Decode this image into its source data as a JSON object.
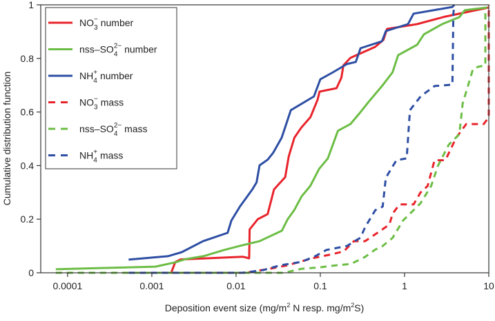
{
  "chart_data": {
    "type": "line",
    "xscale": "log",
    "xlim": [
      4.8e-05,
      10
    ],
    "ylim": [
      0,
      1
    ],
    "xlabel": {
      "pre": "Deposition event size (mg/m",
      "sup1": "2",
      "mid": " N resp. mg/m",
      "sup2": "2",
      "post": "S)"
    },
    "ylabel": "Cumulative distribution function",
    "x_ticks": [
      0.0001,
      0.001,
      0.01,
      0.1,
      1,
      10
    ],
    "x_tick_labels": [
      "0.0001",
      "0.001",
      "0.01",
      "0.1",
      "1",
      "10"
    ],
    "y_ticks": [
      0,
      0.2,
      0.4,
      0.6,
      0.8,
      1
    ],
    "y_tick_labels": [
      "0",
      "0.2",
      "0.4",
      "0.6",
      "0.8",
      "1"
    ],
    "grid": false,
    "legend_position": "top-left",
    "colors": {
      "red": "#e8232b",
      "green": "#6cbd45",
      "blue": "#2d4ea3"
    },
    "series": [
      {
        "name": "NO3- number",
        "label": {
          "pre": "NO",
          "sub": "3",
          "sup": "−",
          "post": " number"
        },
        "color": "#e8232b",
        "dash": false,
        "points": [
          [
            0.0017,
            0
          ],
          [
            0.0019,
            0.04
          ],
          [
            0.0022,
            0.05
          ],
          [
            0.012,
            0.06
          ],
          [
            0.0143,
            0.054
          ],
          [
            0.0145,
            0.162
          ],
          [
            0.0181,
            0.2
          ],
          [
            0.0237,
            0.219
          ],
          [
            0.0282,
            0.311
          ],
          [
            0.0383,
            0.357
          ],
          [
            0.0422,
            0.434
          ],
          [
            0.0492,
            0.504
          ],
          [
            0.0596,
            0.542
          ],
          [
            0.0764,
            0.581
          ],
          [
            0.0926,
            0.645
          ],
          [
            0.098,
            0.676
          ],
          [
            0.156,
            0.689
          ],
          [
            0.178,
            0.728
          ],
          [
            0.188,
            0.774
          ],
          [
            0.228,
            0.802
          ],
          [
            0.447,
            0.843
          ],
          [
            0.562,
            0.869
          ],
          [
            0.62,
            0.91
          ],
          [
            1.41,
            0.928
          ],
          [
            3.04,
            0.956
          ],
          [
            10,
            0.99
          ]
        ]
      },
      {
        "name": "nss-SO42- number",
        "label": {
          "pre": "nss–SO",
          "sub": "4",
          "sup": "2−",
          "post": " number"
        },
        "color": "#6cbd45",
        "dash": false,
        "points": [
          [
            7.24e-05,
            0.013
          ],
          [
            0.0011,
            0.023
          ],
          [
            0.0019,
            0.039
          ],
          [
            0.0025,
            0.051
          ],
          [
            0.0041,
            0.062
          ],
          [
            0.0072,
            0.085
          ],
          [
            0.011,
            0.1
          ],
          [
            0.019,
            0.118
          ],
          [
            0.035,
            0.157
          ],
          [
            0.041,
            0.2
          ],
          [
            0.049,
            0.234
          ],
          [
            0.06,
            0.285
          ],
          [
            0.076,
            0.324
          ],
          [
            0.097,
            0.388
          ],
          [
            0.123,
            0.427
          ],
          [
            0.162,
            0.53
          ],
          [
            0.228,
            0.555
          ],
          [
            0.29,
            0.594
          ],
          [
            0.375,
            0.638
          ],
          [
            0.54,
            0.697
          ],
          [
            0.72,
            0.748
          ],
          [
            0.84,
            0.812
          ],
          [
            1.41,
            0.851
          ],
          [
            1.7,
            0.89
          ],
          [
            2.8,
            0.928
          ],
          [
            4.47,
            0.954
          ],
          [
            5.2,
            0.98
          ],
          [
            9.6,
            0.99
          ]
        ]
      },
      {
        "name": "NH4+ number",
        "label": {
          "pre": "NH",
          "sub": "4",
          "sup": "+",
          "post": " number"
        },
        "color": "#2d4ea3",
        "dash": false,
        "points": [
          [
            0.00053,
            0.049
          ],
          [
            0.00156,
            0.062
          ],
          [
            0.00227,
            0.077
          ],
          [
            0.00406,
            0.118
          ],
          [
            0.00794,
            0.149
          ],
          [
            0.0088,
            0.195
          ],
          [
            0.0111,
            0.247
          ],
          [
            0.0156,
            0.311
          ],
          [
            0.0175,
            0.337
          ],
          [
            0.019,
            0.401
          ],
          [
            0.0237,
            0.422
          ],
          [
            0.0275,
            0.447
          ],
          [
            0.0348,
            0.504
          ],
          [
            0.0447,
            0.607
          ],
          [
            0.084,
            0.658
          ],
          [
            0.1,
            0.722
          ],
          [
            0.141,
            0.748
          ],
          [
            0.207,
            0.779
          ],
          [
            0.264,
            0.787
          ],
          [
            0.3,
            0.838
          ],
          [
            0.54,
            0.864
          ],
          [
            0.6,
            0.902
          ],
          [
            1.1,
            0.928
          ],
          [
            1.28,
            0.967
          ],
          [
            3.7,
            0.992
          ],
          [
            3.9,
            1.0
          ]
        ]
      },
      {
        "name": "NO3- mass",
        "label": {
          "pre": "NO",
          "sub": "3",
          "sup": "−",
          "post": " mass"
        },
        "color": "#e8232b",
        "dash": true,
        "points": [
          [
            0.0017,
            0
          ],
          [
            0.0128,
            0
          ],
          [
            0.025,
            0.015
          ],
          [
            0.041,
            0.028
          ],
          [
            0.08,
            0.054
          ],
          [
            0.128,
            0.067
          ],
          [
            0.19,
            0.08
          ],
          [
            0.25,
            0.118
          ],
          [
            0.34,
            0.118
          ],
          [
            0.45,
            0.144
          ],
          [
            0.66,
            0.18
          ],
          [
            0.72,
            0.22
          ],
          [
            0.87,
            0.255
          ],
          [
            1.28,
            0.255
          ],
          [
            1.55,
            0.3
          ],
          [
            1.88,
            0.324
          ],
          [
            2.27,
            0.42
          ],
          [
            3.05,
            0.42
          ],
          [
            4.1,
            0.504
          ],
          [
            5.4,
            0.555
          ],
          [
            8.7,
            0.555
          ],
          [
            10,
            0.58
          ],
          [
            10,
            1.0
          ]
        ]
      },
      {
        "name": "nss-SO42- mass",
        "label": {
          "pre": "nss–SO",
          "sub": "4",
          "sup": "2−",
          "post": " mass"
        },
        "color": "#6cbd45",
        "dash": true,
        "points": [
          [
            7.24e-05,
            0
          ],
          [
            0.037,
            0
          ],
          [
            0.06,
            0.015
          ],
          [
            0.097,
            0.02
          ],
          [
            0.156,
            0.028
          ],
          [
            0.23,
            0.033
          ],
          [
            0.28,
            0.046
          ],
          [
            0.34,
            0.059
          ],
          [
            0.45,
            0.087
          ],
          [
            0.54,
            0.098
          ],
          [
            0.72,
            0.13
          ],
          [
            0.96,
            0.195
          ],
          [
            1.28,
            0.234
          ],
          [
            1.55,
            0.26
          ],
          [
            2.07,
            0.324
          ],
          [
            2.5,
            0.4
          ],
          [
            3.35,
            0.478
          ],
          [
            4.47,
            0.517
          ],
          [
            4.9,
            0.632
          ],
          [
            6.5,
            0.761
          ],
          [
            7.5,
            0.769
          ],
          [
            9.1,
            0.774
          ],
          [
            9.1,
            0.99
          ]
        ]
      },
      {
        "name": "NH4+ mass",
        "label": {
          "pre": "NH",
          "sub": "4",
          "sup": "+",
          "post": " mass"
        },
        "color": "#2d4ea3",
        "dash": true,
        "points": [
          [
            0.00053,
            0
          ],
          [
            0.012,
            0
          ],
          [
            0.021,
            0.01
          ],
          [
            0.0335,
            0.028
          ],
          [
            0.06,
            0.041
          ],
          [
            0.087,
            0.062
          ],
          [
            0.118,
            0.085
          ],
          [
            0.207,
            0.1
          ],
          [
            0.25,
            0.116
          ],
          [
            0.3,
            0.131
          ],
          [
            0.34,
            0.17
          ],
          [
            0.45,
            0.234
          ],
          [
            0.5,
            0.24
          ],
          [
            0.55,
            0.247
          ],
          [
            0.6,
            0.355
          ],
          [
            0.8,
            0.42
          ],
          [
            1.06,
            0.427
          ],
          [
            1.16,
            0.607
          ],
          [
            1.55,
            0.658
          ],
          [
            2.27,
            0.697
          ],
          [
            3.7,
            0.702
          ],
          [
            3.8,
            0.967
          ],
          [
            3.9,
            1.0
          ]
        ]
      }
    ]
  }
}
